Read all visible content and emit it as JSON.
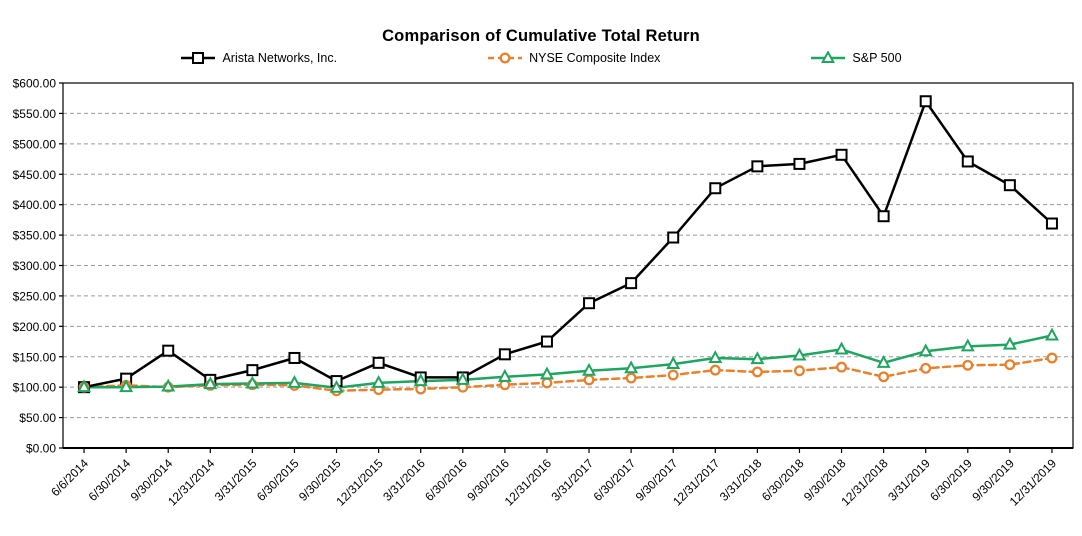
{
  "chart": {
    "title": "Comparison of Cumulative Total Return"
  },
  "chart_data": {
    "type": "line",
    "title": "Comparison of Cumulative Total Return",
    "categories": [
      "6/6/2014",
      "6/30/2014",
      "9/30/2014",
      "12/31/2014",
      "3/31/2015",
      "6/30/2015",
      "9/30/2015",
      "12/31/2015",
      "3/31/2016",
      "6/30/2016",
      "9/30/2016",
      "12/31/2016",
      "3/31/2017",
      "6/30/2017",
      "9/30/2017",
      "12/31/2017",
      "3/31/2018",
      "6/30/2018",
      "9/30/2018",
      "12/31/2018",
      "3/31/2019",
      "6/30/2019",
      "9/30/2019",
      "12/31/2019"
    ],
    "series": [
      {
        "id": "arista",
        "name": "Arista Networks, Inc.",
        "color": "#000000",
        "marker": "square",
        "line": "solid",
        "values": [
          100,
          114,
          160,
          112,
          128,
          148,
          110,
          140,
          116,
          116,
          154,
          175,
          238,
          271,
          346,
          427,
          463,
          467,
          482,
          381,
          570,
          471,
          432,
          369
        ]
      },
      {
        "id": "nyse",
        "name": "NYSE Composite Index",
        "color": "#E6812D",
        "marker": "circle",
        "line": "dashed",
        "values": [
          100,
          103,
          100,
          103,
          104,
          103,
          94,
          96,
          97,
          100,
          104,
          107,
          112,
          115,
          120,
          128,
          125,
          127,
          133,
          117,
          131,
          136,
          137,
          148
        ]
      },
      {
        "id": "sp500",
        "name": "S&P 500",
        "color": "#1EA55F",
        "marker": "triangle",
        "line": "solid",
        "values": [
          100,
          100,
          101,
          105,
          106,
          107,
          99,
          107,
          110,
          112,
          117,
          121,
          127,
          131,
          138,
          148,
          146,
          152,
          162,
          140,
          159,
          167,
          170,
          185
        ]
      }
    ],
    "ylim": [
      0,
      600
    ],
    "ytick_step": 50,
    "ytick_prefix": "$",
    "ytick_decimals": 2,
    "xlabel": "",
    "ylabel": "",
    "legend_position": "top",
    "grid": "horizontal-dashed",
    "grid_color": "#9B9B9B",
    "axis_color": "#000000",
    "marker_fill": "#FFFFFF",
    "plot_background": "#FFFFFF"
  }
}
